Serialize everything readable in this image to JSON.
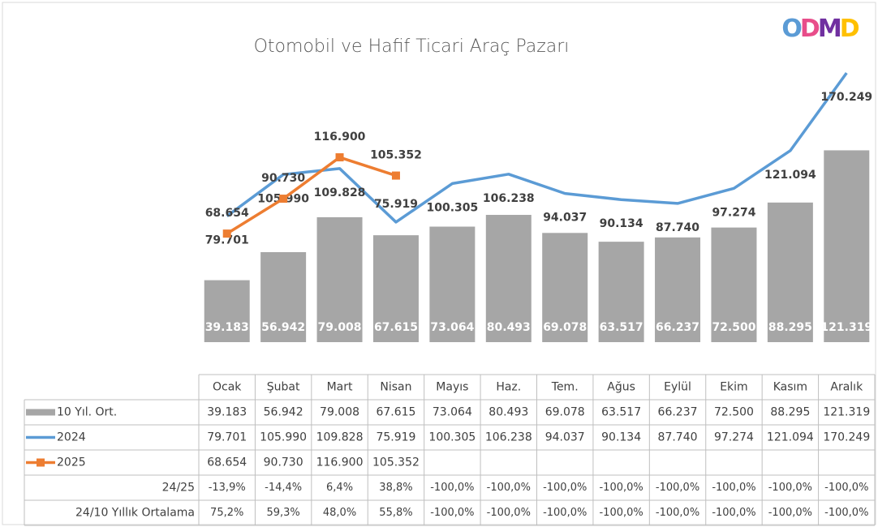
{
  "chart_data": {
    "type": "bar-line",
    "title": "Otomobil ve Hafif Ticari Araç Pazarı",
    "logo": "ODMD",
    "categories": [
      "Ocak",
      "Şubat",
      "Mart",
      "Nisan",
      "Mayıs",
      "Haz.",
      "Tem.",
      "Ağus",
      "Eylül",
      "Ekim",
      "Kasım",
      "Aralık"
    ],
    "series": [
      {
        "name": "10 Yıl. Ort.",
        "type": "bar",
        "color": "#a6a6a6",
        "values": [
          39183,
          56942,
          79008,
          67615,
          73064,
          80493,
          69078,
          63517,
          66237,
          72500,
          88295,
          121319
        ],
        "value_labels": [
          "39.183",
          "56.942",
          "79.008",
          "67.615",
          "73.064",
          "80.493",
          "69.078",
          "63.517",
          "66.237",
          "72.500",
          "88.295",
          "121.319"
        ]
      },
      {
        "name": "2024",
        "type": "line",
        "color": "#5b9bd5",
        "values": [
          79701,
          105990,
          109828,
          75919,
          100305,
          106238,
          94037,
          90134,
          87740,
          97274,
          121094,
          170249
        ],
        "value_labels": [
          "79.701",
          "105.990",
          "109.828",
          "75.919",
          "100.305",
          "106.238",
          "94.037",
          "90.134",
          "87.740",
          "97.274",
          "121.094",
          "170.249"
        ]
      },
      {
        "name": "2025",
        "type": "line",
        "color": "#ed7d31",
        "marker": "square",
        "values": [
          68654,
          90730,
          116900,
          105352,
          null,
          null,
          null,
          null,
          null,
          null,
          null,
          null
        ],
        "value_labels": [
          "68.654",
          "90.730",
          "116.900",
          "105.352",
          null,
          null,
          null,
          null,
          null,
          null,
          null,
          null
        ]
      }
    ],
    "table_rows": [
      {
        "name": "24/25",
        "values": [
          -13.9,
          -14.4,
          6.4,
          38.8,
          -100,
          -100,
          -100,
          -100,
          -100,
          -100,
          -100,
          -100
        ],
        "value_labels": [
          "-13,9%",
          "-14,4%",
          "6,4%",
          "38,8%",
          "-100,0%",
          "-100,0%",
          "-100,0%",
          "-100,0%",
          "-100,0%",
          "-100,0%",
          "-100,0%",
          "-100,0%"
        ]
      },
      {
        "name": "24/10 Yıllık Ortalama",
        "values": [
          75.2,
          59.3,
          48.0,
          55.8,
          -100,
          -100,
          -100,
          -100,
          -100,
          -100,
          -100,
          -100
        ],
        "value_labels": [
          "75,2%",
          "59,3%",
          "48,0%",
          "55,8%",
          "-100,0%",
          "-100,0%",
          "-100,0%",
          "-100,0%",
          "-100,0%",
          "-100,0%",
          "-100,0%",
          "-100,0%"
        ]
      }
    ]
  }
}
